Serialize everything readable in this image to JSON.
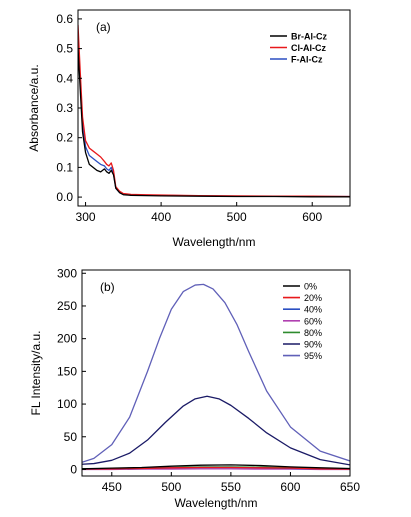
{
  "chart_data": [
    {
      "type": "line",
      "panel_label": "(a)",
      "xlabel": "Wavelength/nm",
      "ylabel": "Absorbance/a.u.",
      "xlim": [
        290,
        650
      ],
      "ylim": [
        -0.03,
        0.63
      ],
      "xticks": [
        300,
        400,
        500,
        600
      ],
      "yticks": [
        0.0,
        0.1,
        0.2,
        0.3,
        0.4,
        0.5,
        0.6
      ],
      "ytick_labels": [
        "0.0",
        "0.1",
        "0.2",
        "0.3",
        "0.4",
        "0.5",
        "0.6"
      ],
      "legend_position": "top-right",
      "series": [
        {
          "name": "Br-Al-Cz",
          "color": "#000000",
          "x": [
            290,
            293,
            296,
            300,
            305,
            310,
            315,
            320,
            325,
            328,
            331,
            334,
            337,
            340,
            345,
            350,
            360,
            380,
            400,
            450,
            500,
            550,
            600,
            650
          ],
          "y": [
            0.5,
            0.36,
            0.22,
            0.15,
            0.11,
            0.1,
            0.09,
            0.085,
            0.095,
            0.085,
            0.08,
            0.09,
            0.075,
            0.03,
            0.015,
            0.008,
            0.006,
            0.005,
            0.004,
            0.003,
            0.002,
            0.002,
            0.001,
            0.001
          ]
        },
        {
          "name": "Cl-Al-Cz",
          "color": "#e8191b",
          "x": [
            290,
            293,
            296,
            300,
            305,
            310,
            315,
            320,
            325,
            328,
            331,
            334,
            337,
            340,
            345,
            350,
            360,
            380,
            400,
            450,
            500,
            550,
            600,
            650
          ],
          "y": [
            0.58,
            0.42,
            0.27,
            0.19,
            0.165,
            0.155,
            0.145,
            0.135,
            0.12,
            0.11,
            0.105,
            0.115,
            0.09,
            0.035,
            0.02,
            0.012,
            0.009,
            0.008,
            0.007,
            0.005,
            0.004,
            0.003,
            0.003,
            0.002
          ]
        },
        {
          "name": "F-Al-Cz",
          "color": "#2b4fc2",
          "x": [
            290,
            293,
            296,
            300,
            305,
            310,
            315,
            320,
            325,
            328,
            331,
            334,
            337,
            340,
            345,
            350,
            360,
            380,
            400,
            450,
            500,
            550,
            600,
            650
          ],
          "y": [
            0.54,
            0.39,
            0.25,
            0.17,
            0.14,
            0.13,
            0.12,
            0.11,
            0.105,
            0.095,
            0.09,
            0.1,
            0.08,
            0.03,
            0.015,
            0.01,
            0.008,
            0.007,
            0.006,
            0.004,
            0.003,
            0.003,
            0.002,
            0.002
          ]
        }
      ]
    },
    {
      "type": "line",
      "panel_label": "(b)",
      "xlabel": "Wavelength/nm",
      "ylabel": "FL Intensity/a.u.",
      "xlim": [
        425,
        650
      ],
      "ylim": [
        -10,
        305
      ],
      "xticks": [
        450,
        500,
        550,
        600,
        650
      ],
      "yticks": [
        0,
        50,
        100,
        150,
        200,
        250,
        300
      ],
      "legend_position": "top-right",
      "series": [
        {
          "name": "0%",
          "color": "#000000",
          "x": [
            425,
            450,
            475,
            500,
            525,
            550,
            575,
            600,
            625,
            650
          ],
          "y": [
            1,
            2,
            3,
            5,
            6.5,
            7,
            6,
            4,
            2.5,
            1.5
          ]
        },
        {
          "name": "20%",
          "color": "#e8191b",
          "x": [
            425,
            450,
            475,
            500,
            525,
            550,
            575,
            600,
            625,
            650
          ],
          "y": [
            0.5,
            1,
            1.5,
            2.5,
            3,
            3,
            2.5,
            2,
            1,
            0.5
          ]
        },
        {
          "name": "40%",
          "color": "#2b4fc2",
          "x": [
            425,
            450,
            475,
            500,
            525,
            550,
            575,
            600,
            625,
            650
          ],
          "y": [
            0.5,
            1,
            1.5,
            2.5,
            3,
            3,
            2.5,
            1.5,
            1,
            0.5
          ]
        },
        {
          "name": "60%",
          "color": "#b040b0",
          "x": [
            425,
            450,
            475,
            500,
            525,
            550,
            575,
            600,
            625,
            650
          ],
          "y": [
            0,
            0,
            0.5,
            0.5,
            1,
            1,
            0.5,
            0.5,
            0,
            0
          ]
        },
        {
          "name": "80%",
          "color": "#2e8b2e",
          "x": [
            425,
            450,
            475,
            500,
            525,
            550,
            575,
            600,
            625,
            650
          ],
          "y": [
            1,
            1.5,
            2,
            3,
            4,
            4,
            3.5,
            2.5,
            1.5,
            1
          ]
        },
        {
          "name": "90%",
          "color": "#1a1a66",
          "x": [
            425,
            435,
            450,
            465,
            480,
            495,
            510,
            520,
            530,
            540,
            550,
            565,
            580,
            600,
            625,
            650
          ],
          "y": [
            8,
            9,
            14,
            25,
            45,
            72,
            97,
            108,
            112,
            108,
            98,
            78,
            56,
            33,
            15,
            7
          ]
        },
        {
          "name": "95%",
          "color": "#6060b8",
          "x": [
            425,
            435,
            450,
            465,
            480,
            490,
            500,
            510,
            520,
            527,
            535,
            545,
            555,
            565,
            580,
            600,
            625,
            650
          ],
          "y": [
            11,
            17,
            38,
            80,
            150,
            200,
            245,
            272,
            282,
            283,
            276,
            255,
            222,
            180,
            120,
            65,
            28,
            13
          ]
        }
      ]
    }
  ]
}
